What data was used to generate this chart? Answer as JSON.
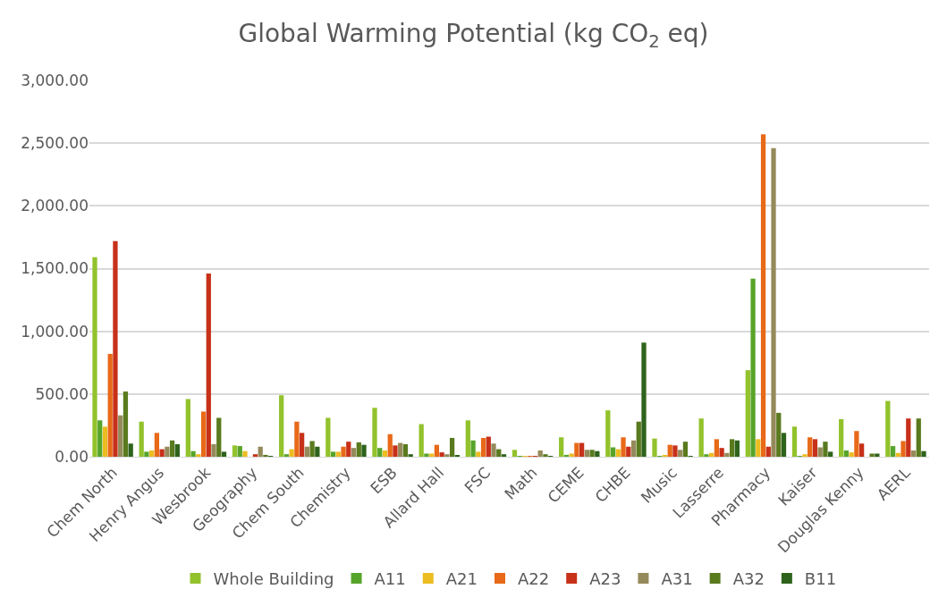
{
  "chart_data": {
    "type": "bar",
    "title": "Global Warming Potential (kg CO$_{2}$ eq)",
    "categories": [
      "Chem North",
      "Henry Angus",
      "Wesbrook",
      "Geography",
      "Chem South",
      "Chemistry",
      "ESB",
      "Allard Hall",
      "FSC",
      "Math",
      "CEME",
      "CHBE",
      "Music",
      "Lasserre",
      "Pharmacy",
      "Kaiser",
      "Douglas Kenny",
      "AERL"
    ],
    "series": [
      {
        "name": "Whole Building",
        "color": "#92c22c",
        "values": [
          1590,
          280,
          460,
          90,
          490,
          310,
          390,
          260,
          290,
          55,
          155,
          370,
          145,
          305,
          690,
          240,
          300,
          445
        ]
      },
      {
        "name": "A11",
        "color": "#57a42a",
        "values": [
          290,
          40,
          45,
          85,
          20,
          40,
          70,
          25,
          130,
          5,
          15,
          75,
          5,
          20,
          1420,
          5,
          50,
          85
        ]
      },
      {
        "name": "A21",
        "color": "#ebbd21",
        "values": [
          240,
          50,
          20,
          45,
          60,
          40,
          50,
          25,
          40,
          5,
          25,
          60,
          10,
          30,
          140,
          20,
          35,
          30
        ]
      },
      {
        "name": "A22",
        "color": "#e86918",
        "values": [
          820,
          190,
          360,
          0,
          280,
          80,
          180,
          95,
          150,
          5,
          110,
          155,
          95,
          140,
          2570,
          155,
          205,
          125
        ]
      },
      {
        "name": "A23",
        "color": "#c73019",
        "values": [
          1720,
          60,
          1460,
          20,
          190,
          120,
          90,
          35,
          160,
          5,
          110,
          80,
          90,
          70,
          80,
          140,
          105,
          305
        ]
      },
      {
        "name": "A31",
        "color": "#958a5b",
        "values": [
          330,
          80,
          100,
          80,
          80,
          70,
          110,
          20,
          105,
          50,
          55,
          130,
          55,
          30,
          2460,
          75,
          0,
          50
        ]
      },
      {
        "name": "A32",
        "color": "#5a7a1e",
        "values": [
          520,
          130,
          310,
          15,
          125,
          115,
          100,
          150,
          60,
          20,
          55,
          280,
          120,
          140,
          350,
          120,
          25,
          305
        ]
      },
      {
        "name": "B11",
        "color": "#2e631c",
        "values": [
          105,
          100,
          40,
          2,
          80,
          95,
          20,
          10,
          20,
          5,
          45,
          910,
          5,
          130,
          190,
          40,
          25,
          45
        ]
      }
    ],
    "ylim": [
      0,
      3000
    ],
    "yticks": [
      {
        "value": 0,
        "label": "0.00"
      },
      {
        "value": 500,
        "label": "500.00"
      },
      {
        "value": 1000,
        "label": "1,000.00"
      },
      {
        "value": 1500,
        "label": "1,500.00"
      },
      {
        "value": 2000,
        "label": "2,000.00"
      },
      {
        "value": 2500,
        "label": "2,500.00"
      },
      {
        "value": 3000,
        "label": "3,000.00"
      }
    ],
    "grid": "y",
    "legend": "bottom"
  }
}
